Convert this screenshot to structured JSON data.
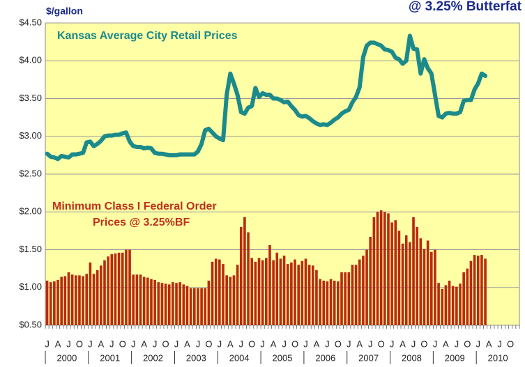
{
  "chart_data": {
    "type": "combo",
    "title": "@ 3.25% Butterfat",
    "y_axis_label": "$/gallon",
    "annotations": [
      "Kansas Average City Retail Prices",
      "Minimum Class I Federal Order",
      "Prices @ 3.25%BF"
    ],
    "categories": [
      "J",
      null,
      null,
      "A",
      null,
      null,
      "J",
      null,
      null,
      "O",
      null,
      null,
      "J",
      null,
      null,
      "A",
      null,
      null,
      "J",
      null,
      null,
      "O",
      null,
      null,
      "J",
      null,
      null,
      "A",
      null,
      null,
      "J",
      null,
      null,
      "O",
      null,
      null,
      "J",
      null,
      null,
      "A",
      null,
      null,
      "J",
      null,
      null,
      "O",
      null,
      null,
      "J",
      null,
      null,
      "A",
      null,
      null,
      "J",
      null,
      null,
      "O",
      null,
      null,
      "J",
      null,
      null,
      "A",
      null,
      null,
      "J",
      null,
      null,
      "O",
      null,
      null,
      "J",
      null,
      null,
      "A",
      null,
      null,
      "J",
      null,
      null,
      "O",
      null,
      null,
      "J",
      null,
      null,
      "A",
      null,
      null,
      "J",
      null,
      null,
      "O",
      null,
      null,
      "J",
      null,
      null,
      "A",
      null,
      null,
      "J",
      null,
      null,
      "O",
      null,
      null,
      "J",
      null,
      null,
      "A",
      null,
      null,
      "J",
      null,
      null,
      "O",
      null,
      null,
      "J",
      null,
      null,
      "A",
      null,
      null,
      "J",
      null,
      null,
      "O",
      null,
      null
    ],
    "years": [
      "2000",
      "2001",
      "2002",
      "2003",
      "2004",
      "2005",
      "2006",
      "2007",
      "2008",
      "2009",
      "2010"
    ],
    "series": [
      {
        "name": "Kansas Average City Retail Prices",
        "type": "line",
        "color": "#1b8a8a",
        "values": [
          2.77,
          2.73,
          2.72,
          2.7,
          2.74,
          2.73,
          2.72,
          2.76,
          2.76,
          2.77,
          2.78,
          2.92,
          2.93,
          2.87,
          2.9,
          2.94,
          3.0,
          3.01,
          3.01,
          3.02,
          3.02,
          3.04,
          3.05,
          2.93,
          2.87,
          2.86,
          2.86,
          2.84,
          2.85,
          2.84,
          2.78,
          2.77,
          2.77,
          2.76,
          2.75,
          2.75,
          2.75,
          2.76,
          2.76,
          2.76,
          2.76,
          2.76,
          2.8,
          2.9,
          3.08,
          3.1,
          3.05,
          3.0,
          2.97,
          2.95,
          3.55,
          3.83,
          3.7,
          3.55,
          3.32,
          3.3,
          3.38,
          3.4,
          3.64,
          3.52,
          3.57,
          3.55,
          3.55,
          3.5,
          3.5,
          3.48,
          3.45,
          3.46,
          3.4,
          3.35,
          3.28,
          3.26,
          3.27,
          3.24,
          3.2,
          3.17,
          3.15,
          3.16,
          3.15,
          3.18,
          3.22,
          3.25,
          3.3,
          3.33,
          3.35,
          3.45,
          3.52,
          3.65,
          4.05,
          4.2,
          4.24,
          4.24,
          4.22,
          4.2,
          4.15,
          4.14,
          4.12,
          4.04,
          4.02,
          3.96,
          4.0,
          4.33,
          4.16,
          4.15,
          3.83,
          4.02,
          3.9,
          3.83,
          3.55,
          3.27,
          3.25,
          3.3,
          3.31,
          3.3,
          3.3,
          3.32,
          3.47,
          3.48,
          3.48,
          3.62,
          3.7,
          3.83,
          3.8,
          null,
          null,
          null,
          null,
          null,
          null,
          null,
          null,
          null
        ]
      },
      {
        "name": "Minimum Class I Federal Order Prices @ 3.25%BF",
        "type": "bar",
        "color": "#b82a10",
        "values": [
          1.09,
          1.07,
          1.08,
          1.1,
          1.14,
          1.15,
          1.2,
          1.17,
          1.16,
          1.16,
          1.15,
          1.18,
          1.33,
          1.18,
          1.23,
          1.29,
          1.36,
          1.41,
          1.44,
          1.45,
          1.46,
          1.46,
          1.5,
          1.5,
          1.17,
          1.17,
          1.17,
          1.14,
          1.13,
          1.11,
          1.1,
          1.07,
          1.06,
          1.05,
          1.04,
          1.07,
          1.06,
          1.07,
          1.04,
          1.02,
          0.99,
          0.99,
          0.99,
          0.99,
          0.99,
          1.09,
          1.34,
          1.38,
          1.37,
          1.31,
          1.16,
          1.14,
          1.16,
          1.3,
          1.8,
          1.93,
          1.73,
          1.39,
          1.34,
          1.39,
          1.36,
          1.39,
          1.56,
          1.36,
          1.46,
          1.38,
          1.42,
          1.31,
          1.33,
          1.37,
          1.3,
          1.35,
          1.38,
          1.3,
          1.29,
          1.23,
          1.11,
          1.09,
          1.08,
          1.11,
          1.09,
          1.08,
          1.2,
          1.2,
          1.2,
          1.3,
          1.3,
          1.37,
          1.42,
          1.5,
          1.67,
          1.93,
          2.0,
          2.02,
          2.0,
          1.98,
          1.86,
          1.89,
          1.75,
          1.58,
          1.69,
          1.6,
          1.93,
          1.8,
          1.65,
          1.51,
          1.62,
          1.47,
          1.5,
          1.06,
          0.98,
          1.03,
          1.09,
          1.02,
          1.01,
          1.05,
          1.2,
          1.25,
          1.35,
          1.43,
          1.42,
          1.43,
          1.38,
          null,
          null,
          null,
          null,
          null,
          null,
          null,
          null,
          null
        ]
      }
    ],
    "ylim": [
      0.5,
      4.5
    ],
    "yticks": [
      {
        "value": 0.5,
        "label": "$0.50"
      },
      {
        "value": 1.0,
        "label": "$1.00"
      },
      {
        "value": 1.5,
        "label": "$1.50"
      },
      {
        "value": 2.0,
        "label": "$2.00"
      },
      {
        "value": 2.5,
        "label": "$2.50"
      },
      {
        "value": 3.0,
        "label": "$3.00"
      },
      {
        "value": 3.5,
        "label": "$3.50"
      },
      {
        "value": 4.0,
        "label": "$4.00"
      },
      {
        "value": 4.5,
        "label": "$4.50"
      }
    ],
    "grid": true,
    "background": "#ffffa6"
  }
}
